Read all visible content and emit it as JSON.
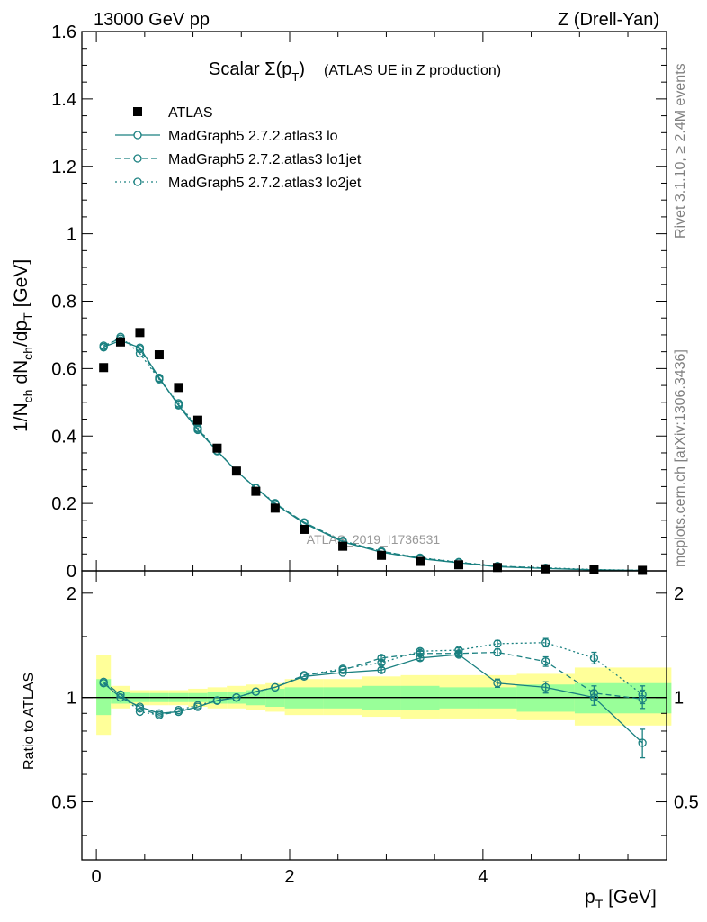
{
  "header": {
    "left": "13000 GeV pp",
    "right": "Z (Drell-Yan)"
  },
  "side_labels": {
    "rivet": "Rivet 3.1.10, ≥ 2.4M events",
    "mcplots": "mcplots.cern.ch [arXiv:1306.3436]"
  },
  "colors": {
    "mc": "#1a8080",
    "band_inner": "#99ff99",
    "band_outer": "#ffff99",
    "data": "#000000"
  },
  "chart_data": [
    {
      "type": "scatter",
      "title_main": "Scalar Σ(p",
      "title_sub": "T",
      "title_close": ")",
      "title_rest": "(ATLAS UE in Z production)",
      "ylabel": "1/N_ch dN_ch/dp_T [GeV]",
      "watermark": "ATLAS_2019_I1736531",
      "xlim": [
        -0.15,
        5.9
      ],
      "ylim": [
        0,
        1.6
      ],
      "yticks": [
        0,
        0.2,
        0.4,
        0.6,
        0.8,
        1,
        1.2,
        1.4,
        1.6
      ],
      "ytick_labels": [
        "0",
        "0.2",
        "0.4",
        "0.6",
        "0.8",
        "1",
        "1.2",
        "1.4",
        "1.6"
      ],
      "x": [
        0.075,
        0.25,
        0.45,
        0.65,
        0.85,
        1.05,
        1.25,
        1.45,
        1.65,
        1.85,
        2.15,
        2.55,
        2.95,
        3.35,
        3.75,
        4.15,
        4.65,
        5.15,
        5.65
      ],
      "legend": [
        {
          "label": "ATLAS",
          "style": "square"
        },
        {
          "label": "MadGraph5 2.7.2.atlas3 lo",
          "style": "solid"
        },
        {
          "label": "MadGraph5 2.7.2.atlas3 lo1jet",
          "style": "dashed"
        },
        {
          "label": "MadGraph5 2.7.2.atlas3 lo2jet",
          "style": "dotted"
        }
      ],
      "series": [
        {
          "name": "ATLAS",
          "values": [
            0.603,
            0.679,
            0.707,
            0.641,
            0.544,
            0.447,
            0.364,
            0.296,
            0.236,
            0.186,
            0.123,
            0.073,
            0.046,
            0.028,
            0.018,
            0.01,
            0.006,
            0.003,
            0.0015
          ]
        },
        {
          "name": "MadGraph5 2.7.2.atlas3 lo",
          "values": [
            0.664,
            0.683,
            0.662,
            0.573,
            0.491,
            0.418,
            0.355,
            0.296,
            0.246,
            0.198,
            0.141,
            0.086,
            0.055,
            0.036,
            0.024,
            0.012,
            0.007,
            0.003,
            0.0012
          ]
        },
        {
          "name": "MadGraph5 2.7.2.atlas3 lo1jet",
          "values": [
            0.668,
            0.689,
            0.658,
            0.57,
            0.493,
            0.421,
            0.356,
            0.296,
            0.245,
            0.2,
            0.144,
            0.088,
            0.058,
            0.038,
            0.025,
            0.014,
            0.008,
            0.003,
            0.0015
          ]
        },
        {
          "name": "MadGraph5 2.7.2.atlas3 lo2jet",
          "values": [
            0.663,
            0.694,
            0.645,
            0.568,
            0.497,
            0.424,
            0.357,
            0.296,
            0.246,
            0.201,
            0.143,
            0.089,
            0.058,
            0.039,
            0.026,
            0.014,
            0.009,
            0.004,
            0.0015
          ]
        }
      ]
    },
    {
      "type": "line",
      "ylabel": "Ratio to ATLAS",
      "xlabel": "p_T [GeV]",
      "xlim": [
        -0.15,
        5.9
      ],
      "ylim": [
        0.34,
        2.32
      ],
      "scale": "log",
      "yticks": [
        0.5,
        1,
        2
      ],
      "ytick_labels": [
        "0.5",
        "1",
        "2"
      ],
      "xticks": [
        0,
        2,
        4
      ],
      "xtick_labels": [
        "0",
        "2",
        "4"
      ],
      "x": [
        0.075,
        0.25,
        0.45,
        0.65,
        0.85,
        1.05,
        1.25,
        1.45,
        1.65,
        1.85,
        2.15,
        2.55,
        2.95,
        3.35,
        3.75,
        4.15,
        4.65,
        5.15,
        5.65
      ],
      "bin_edges": [
        0,
        0.15,
        0.35,
        0.55,
        0.75,
        0.95,
        1.15,
        1.35,
        1.55,
        1.75,
        1.95,
        2.35,
        2.75,
        3.15,
        3.55,
        3.95,
        4.35,
        4.95,
        5.35,
        5.95
      ],
      "band_inner": [
        [
          0.89,
          1.13
        ],
        [
          0.96,
          1.04
        ],
        [
          0.97,
          1.03
        ],
        [
          0.97,
          1.03
        ],
        [
          0.97,
          1.03
        ],
        [
          0.97,
          1.03
        ],
        [
          0.96,
          1.04
        ],
        [
          0.96,
          1.04
        ],
        [
          0.95,
          1.05
        ],
        [
          0.94,
          1.06
        ],
        [
          0.93,
          1.07
        ],
        [
          0.93,
          1.07
        ],
        [
          0.92,
          1.08
        ],
        [
          0.92,
          1.08
        ],
        [
          0.93,
          1.07
        ],
        [
          0.93,
          1.07
        ],
        [
          0.91,
          1.09
        ],
        [
          0.9,
          1.1
        ],
        [
          0.9,
          1.1
        ]
      ],
      "band_outer": [
        [
          0.78,
          1.33
        ],
        [
          0.93,
          1.08
        ],
        [
          0.95,
          1.05
        ],
        [
          0.95,
          1.05
        ],
        [
          0.95,
          1.05
        ],
        [
          0.94,
          1.06
        ],
        [
          0.93,
          1.07
        ],
        [
          0.93,
          1.08
        ],
        [
          0.92,
          1.09
        ],
        [
          0.91,
          1.1
        ],
        [
          0.89,
          1.13
        ],
        [
          0.89,
          1.13
        ],
        [
          0.88,
          1.15
        ],
        [
          0.87,
          1.16
        ],
        [
          0.87,
          1.16
        ],
        [
          0.87,
          1.16
        ],
        [
          0.86,
          1.17
        ],
        [
          0.83,
          1.22
        ],
        [
          0.83,
          1.22
        ]
      ],
      "series": [
        {
          "name": "MadGraph5 2.7.2.atlas3 lo",
          "values": [
            1.1,
            1.0,
            0.94,
            0.9,
            0.91,
            0.94,
            0.98,
            1.0,
            1.04,
            1.07,
            1.15,
            1.18,
            1.2,
            1.3,
            1.33,
            1.1,
            1.07,
            1.0,
            0.74
          ],
          "err": [
            0.01,
            0.01,
            0.01,
            0.01,
            0.01,
            0.01,
            0.01,
            0.01,
            0.01,
            0.01,
            0.01,
            0.01,
            0.02,
            0.02,
            0.02,
            0.03,
            0.04,
            0.05,
            0.07
          ]
        },
        {
          "name": "MadGraph5 2.7.2.atlas3 lo1jet",
          "values": [
            1.11,
            1.02,
            0.93,
            0.89,
            0.91,
            0.94,
            0.98,
            1.0,
            1.04,
            1.07,
            1.16,
            1.2,
            1.3,
            1.34,
            1.34,
            1.35,
            1.27,
            1.03,
            0.99
          ],
          "err": [
            0.01,
            0.01,
            0.01,
            0.01,
            0.01,
            0.01,
            0.01,
            0.01,
            0.01,
            0.01,
            0.01,
            0.01,
            0.02,
            0.02,
            0.02,
            0.03,
            0.04,
            0.05,
            0.06
          ]
        },
        {
          "name": "MadGraph5 2.7.2.atlas3 lo2jet",
          "values": [
            1.1,
            1.02,
            0.91,
            0.89,
            0.92,
            0.95,
            0.98,
            1.0,
            1.04,
            1.07,
            1.16,
            1.21,
            1.26,
            1.36,
            1.37,
            1.43,
            1.44,
            1.3,
            1.02
          ],
          "err": [
            0.01,
            0.01,
            0.01,
            0.01,
            0.01,
            0.01,
            0.01,
            0.01,
            0.01,
            0.01,
            0.01,
            0.01,
            0.02,
            0.02,
            0.02,
            0.03,
            0.04,
            0.05,
            0.06
          ]
        }
      ]
    }
  ]
}
